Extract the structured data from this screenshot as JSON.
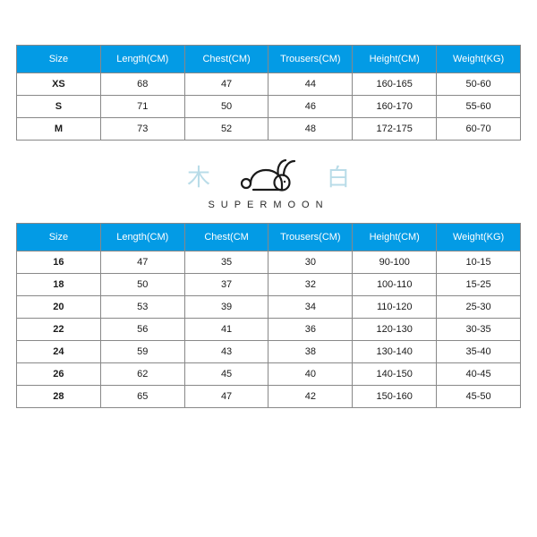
{
  "colors": {
    "header_bg": "#039be5",
    "header_text": "#ffffff",
    "grid": "#888888",
    "cell_bg": "#ffffff",
    "text": "#1a1a1a",
    "accent_cjk": "#b9dce8",
    "logo_stroke": "#1a1a1a"
  },
  "typography": {
    "base_family": "Arial, Helvetica, sans-serif",
    "header_fontsize": 11,
    "cell_fontsize": 11,
    "brand_letterspacing": 7,
    "brand_fontsize": 11,
    "cjk_fontsize": 26
  },
  "table_adult": {
    "type": "table",
    "columns": [
      "Size",
      "Length(CM)",
      "Chest(CM)",
      "Trousers(CM)",
      "Height(CM)",
      "Weight(KG)"
    ],
    "rows": [
      [
        "XS",
        "68",
        "47",
        "44",
        "160-165",
        "50-60"
      ],
      [
        "S",
        "71",
        "50",
        "46",
        "160-170",
        "55-60"
      ],
      [
        "M",
        "73",
        "52",
        "48",
        "172-175",
        "60-70"
      ]
    ]
  },
  "brand": {
    "left_char": "木",
    "right_char": "白",
    "name": "SUPERMOON"
  },
  "table_kids": {
    "type": "table",
    "columns": [
      "Size",
      "Length(CM)",
      "Chest(CM",
      "Trousers(CM)",
      "Height(CM)",
      "Weight(KG)"
    ],
    "rows": [
      [
        "16",
        "47",
        "35",
        "30",
        "90-100",
        "10-15"
      ],
      [
        "18",
        "50",
        "37",
        "32",
        "100-110",
        "15-25"
      ],
      [
        "20",
        "53",
        "39",
        "34",
        "110-120",
        "25-30"
      ],
      [
        "22",
        "56",
        "41",
        "36",
        "120-130",
        "30-35"
      ],
      [
        "24",
        "59",
        "43",
        "38",
        "130-140",
        "35-40"
      ],
      [
        "26",
        "62",
        "45",
        "40",
        "140-150",
        "40-45"
      ],
      [
        "28",
        "65",
        "47",
        "42",
        "150-160",
        "45-50"
      ]
    ]
  }
}
